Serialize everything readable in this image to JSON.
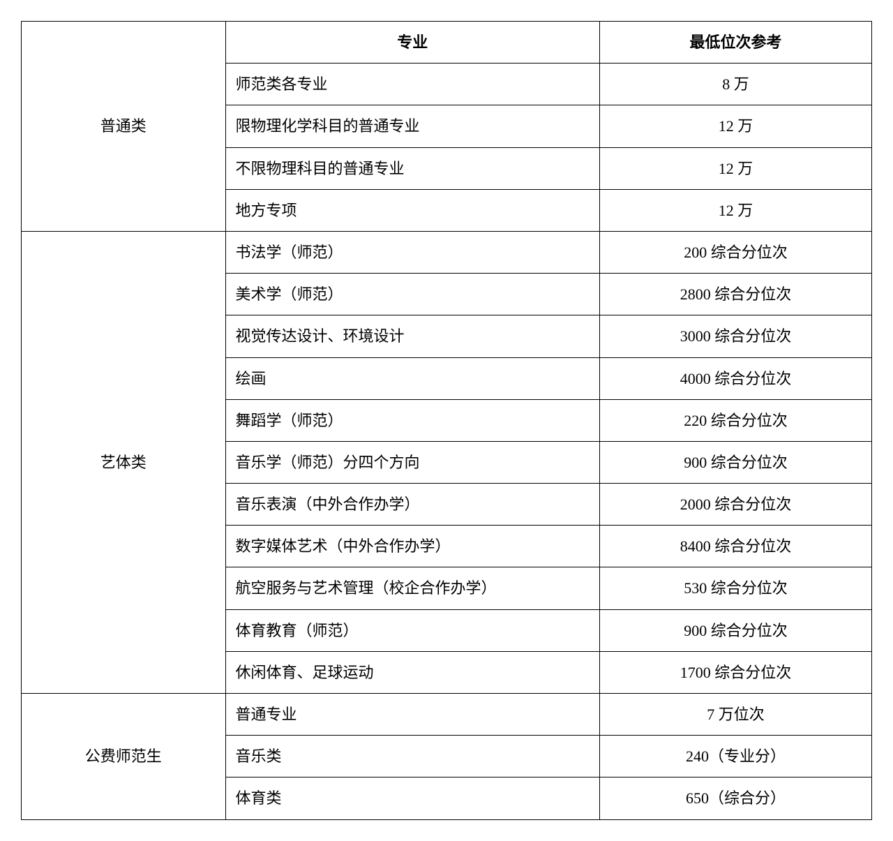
{
  "table": {
    "headers": {
      "col1": "",
      "col2": "专业",
      "col3": "最低位次参考"
    },
    "categories": [
      {
        "name": "普通类",
        "rows": [
          {
            "major": "师范类各专业",
            "rank": "8 万"
          },
          {
            "major": "限物理化学科目的普通专业",
            "rank": "12 万"
          },
          {
            "major": "不限物理科目的普通专业",
            "rank": "12 万"
          },
          {
            "major": "地方专项",
            "rank": "12 万"
          }
        ]
      },
      {
        "name": "艺体类",
        "rows": [
          {
            "major": "书法学（师范）",
            "rank": "200 综合分位次"
          },
          {
            "major": "美术学（师范）",
            "rank": "2800 综合分位次"
          },
          {
            "major": "视觉传达设计、环境设计",
            "rank": "3000 综合分位次"
          },
          {
            "major": "绘画",
            "rank": "4000 综合分位次"
          },
          {
            "major": "舞蹈学（师范）",
            "rank": "220 综合分位次"
          },
          {
            "major": "音乐学（师范）分四个方向",
            "rank": "900 综合分位次"
          },
          {
            "major": "音乐表演（中外合作办学）",
            "rank": "2000 综合分位次"
          },
          {
            "major": "数字媒体艺术（中外合作办学）",
            "rank": "8400 综合分位次"
          },
          {
            "major": "航空服务与艺术管理（校企合作办学）",
            "rank": "530 综合分位次"
          },
          {
            "major": "体育教育（师范）",
            "rank": "900 综合分位次"
          },
          {
            "major": "休闲体育、足球运动",
            "rank": "1700 综合分位次"
          }
        ]
      },
      {
        "name": "公费师范生",
        "rows": [
          {
            "major": "普通专业",
            "rank": "7 万位次"
          },
          {
            "major": "音乐类",
            "rank": "240（专业分）"
          },
          {
            "major": "体育类",
            "rank": "650（综合分）"
          }
        ]
      }
    ]
  },
  "styling": {
    "background_color": "#ffffff",
    "border_color": "#000000",
    "font_family": "SimSun",
    "cell_fontsize": 22,
    "header_fontweight": "bold",
    "col_widths_pct": [
      24,
      44,
      32
    ]
  }
}
